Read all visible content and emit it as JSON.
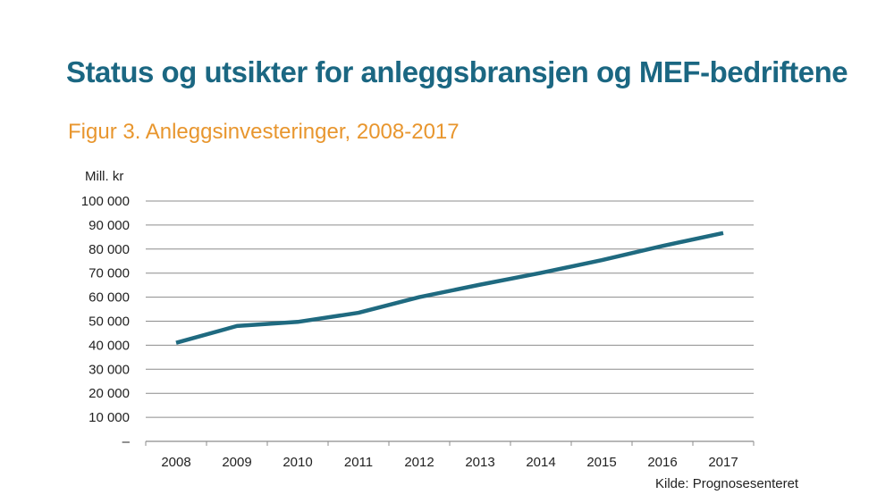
{
  "slide": {
    "title": "Status og utsikter for anleggsbransjen og MEF-bedriftene",
    "figure_title": "Figur 3. Anleggsinvesteringer, 2008-2017",
    "source": "Kilde: Prognosesenteret"
  },
  "colors": {
    "title": "#1b6782",
    "figure_title": "#e8962e",
    "line": "#1f6a80",
    "grid": "#8c8c8c"
  },
  "chart_data": {
    "type": "line",
    "title": "Figur 3. Anleggsinvesteringer, 2008-2017",
    "ylabel": "Mill. kr",
    "xlabel": "",
    "categories": [
      "2008",
      "2009",
      "2010",
      "2011",
      "2012",
      "2013",
      "2014",
      "2015",
      "2016",
      "2017"
    ],
    "series": [
      {
        "values": [
          41000,
          48000,
          49700,
          53500,
          60000,
          65200,
          70100,
          75400,
          81300,
          86700
        ]
      }
    ],
    "ylim": [
      0,
      100000
    ],
    "yticks": [
      0,
      10000,
      20000,
      30000,
      40000,
      50000,
      60000,
      70000,
      80000,
      90000,
      100000
    ],
    "ytick_labels": [
      "–",
      "10 000",
      "20 000",
      "30 000",
      "40 000",
      "50 000",
      "60 000",
      "70 000",
      "80 000",
      "90 000",
      "100 000"
    ],
    "grid": true,
    "legend": "none"
  }
}
